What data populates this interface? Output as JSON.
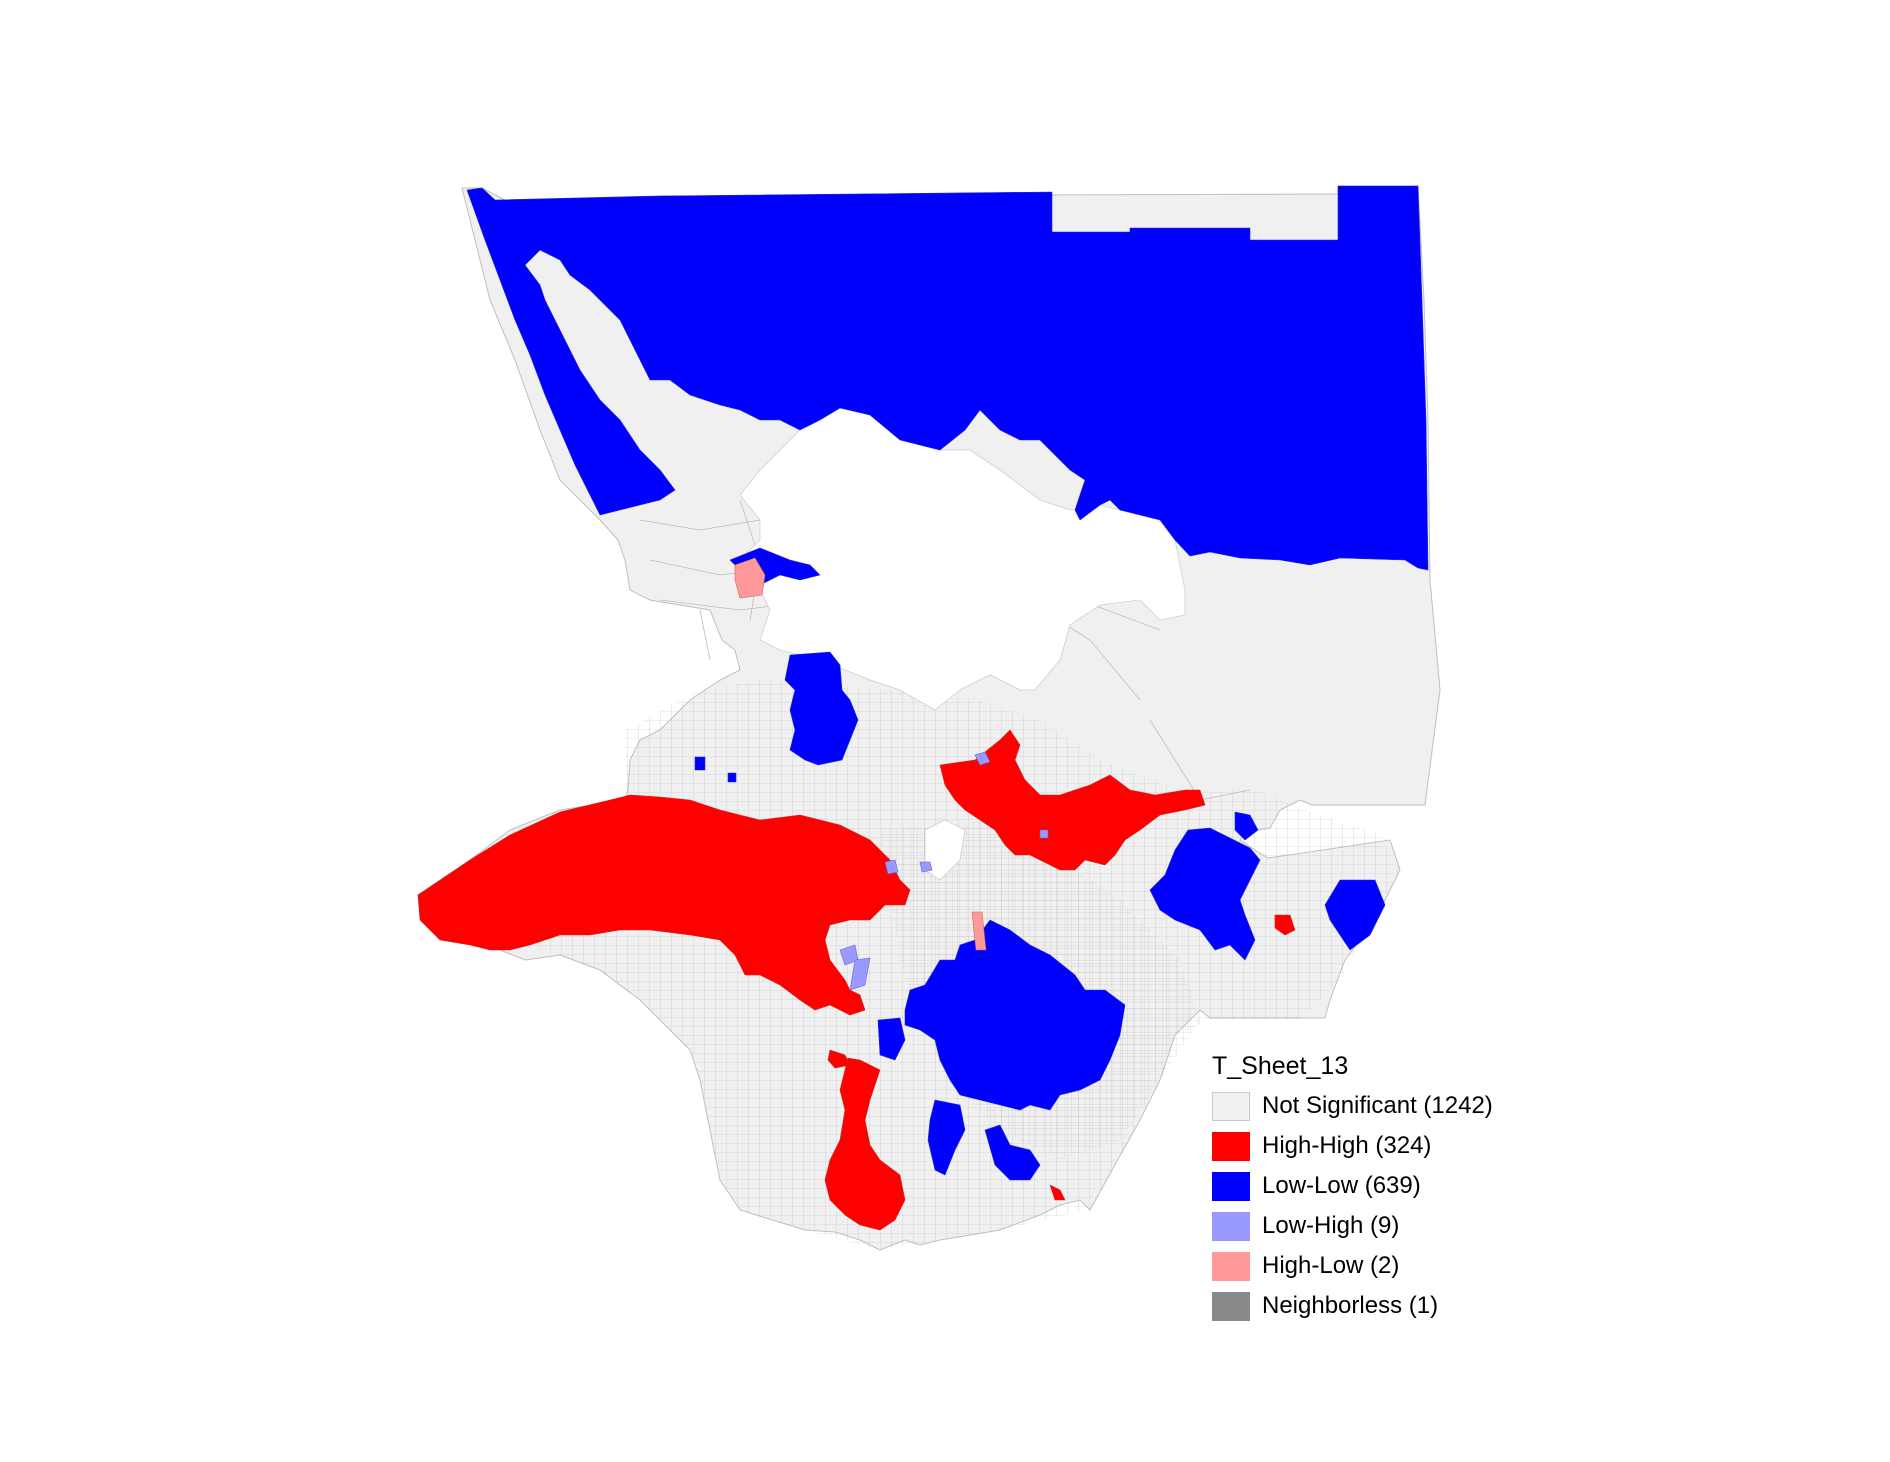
{
  "legend": {
    "title": "T_Sheet_13",
    "items": [
      {
        "label": "Not Significant (1242)",
        "category": "not-significant",
        "color": "#f0f0f0"
      },
      {
        "label": "High-High (324)",
        "category": "high-high",
        "color": "#ff0000"
      },
      {
        "label": "Low-Low (639)",
        "category": "low-low",
        "color": "#0000ff"
      },
      {
        "label": "Low-High (9)",
        "category": "low-high",
        "color": "#9999ff"
      },
      {
        "label": "High-Low (2)",
        "category": "high-low",
        "color": "#ff9999"
      },
      {
        "label": "Neighborless (1)",
        "category": "neighborless",
        "color": "#888888"
      }
    ]
  },
  "colors": {
    "not_significant": "#f0f0f0",
    "high_high": "#ff0000",
    "low_low": "#0000ff",
    "low_high": "#9999ff",
    "high_low": "#ff9999",
    "neighborless": "#888888",
    "boundary": "#bfbfbf"
  }
}
